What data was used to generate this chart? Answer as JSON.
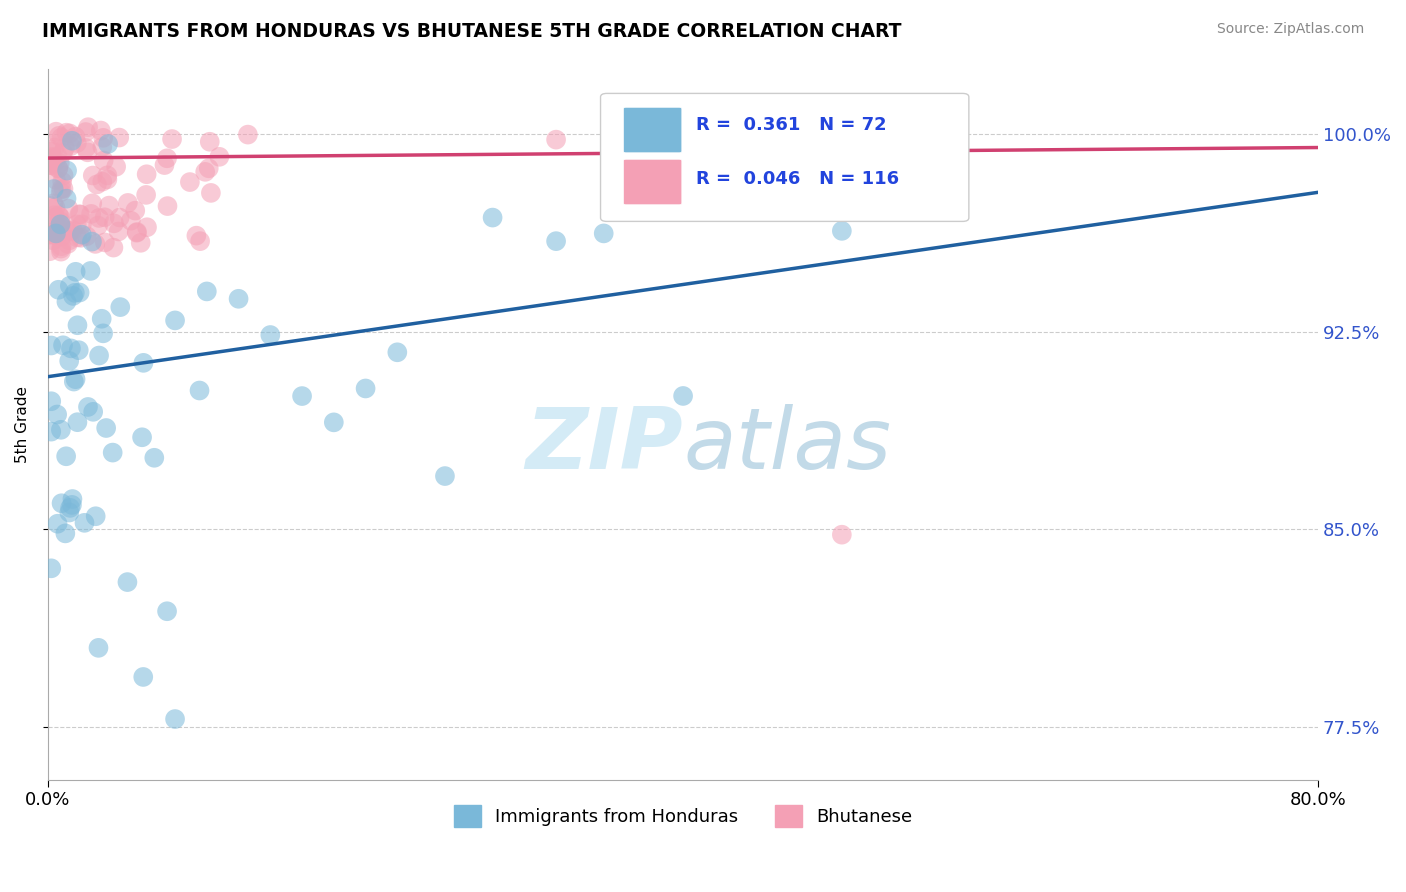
{
  "title": "IMMIGRANTS FROM HONDURAS VS BHUTANESE 5TH GRADE CORRELATION CHART",
  "source": "Source: ZipAtlas.com",
  "ylabel": "5th Grade",
  "xmin": 0.0,
  "xmax": 80.0,
  "ymin": 75.5,
  "ymax": 102.5,
  "ytick_values": [
    77.5,
    85.0,
    92.5,
    100.0
  ],
  "xtick_values": [
    0.0,
    80.0
  ],
  "blue_R": 0.361,
  "blue_N": 72,
  "pink_R": 0.046,
  "pink_N": 116,
  "blue_color": "#7ab8d9",
  "pink_color": "#f4a0b5",
  "blue_line_color": "#2060a0",
  "pink_line_color": "#d04070",
  "legend1_label": "Immigrants from Honduras",
  "legend2_label": "Bhutanese",
  "blue_line_x0": 0.0,
  "blue_line_y0": 90.8,
  "blue_line_x1": 80.0,
  "blue_line_y1": 97.8,
  "pink_line_x0": 0.0,
  "pink_line_y0": 99.1,
  "pink_line_x1": 80.0,
  "pink_line_y1": 99.5
}
